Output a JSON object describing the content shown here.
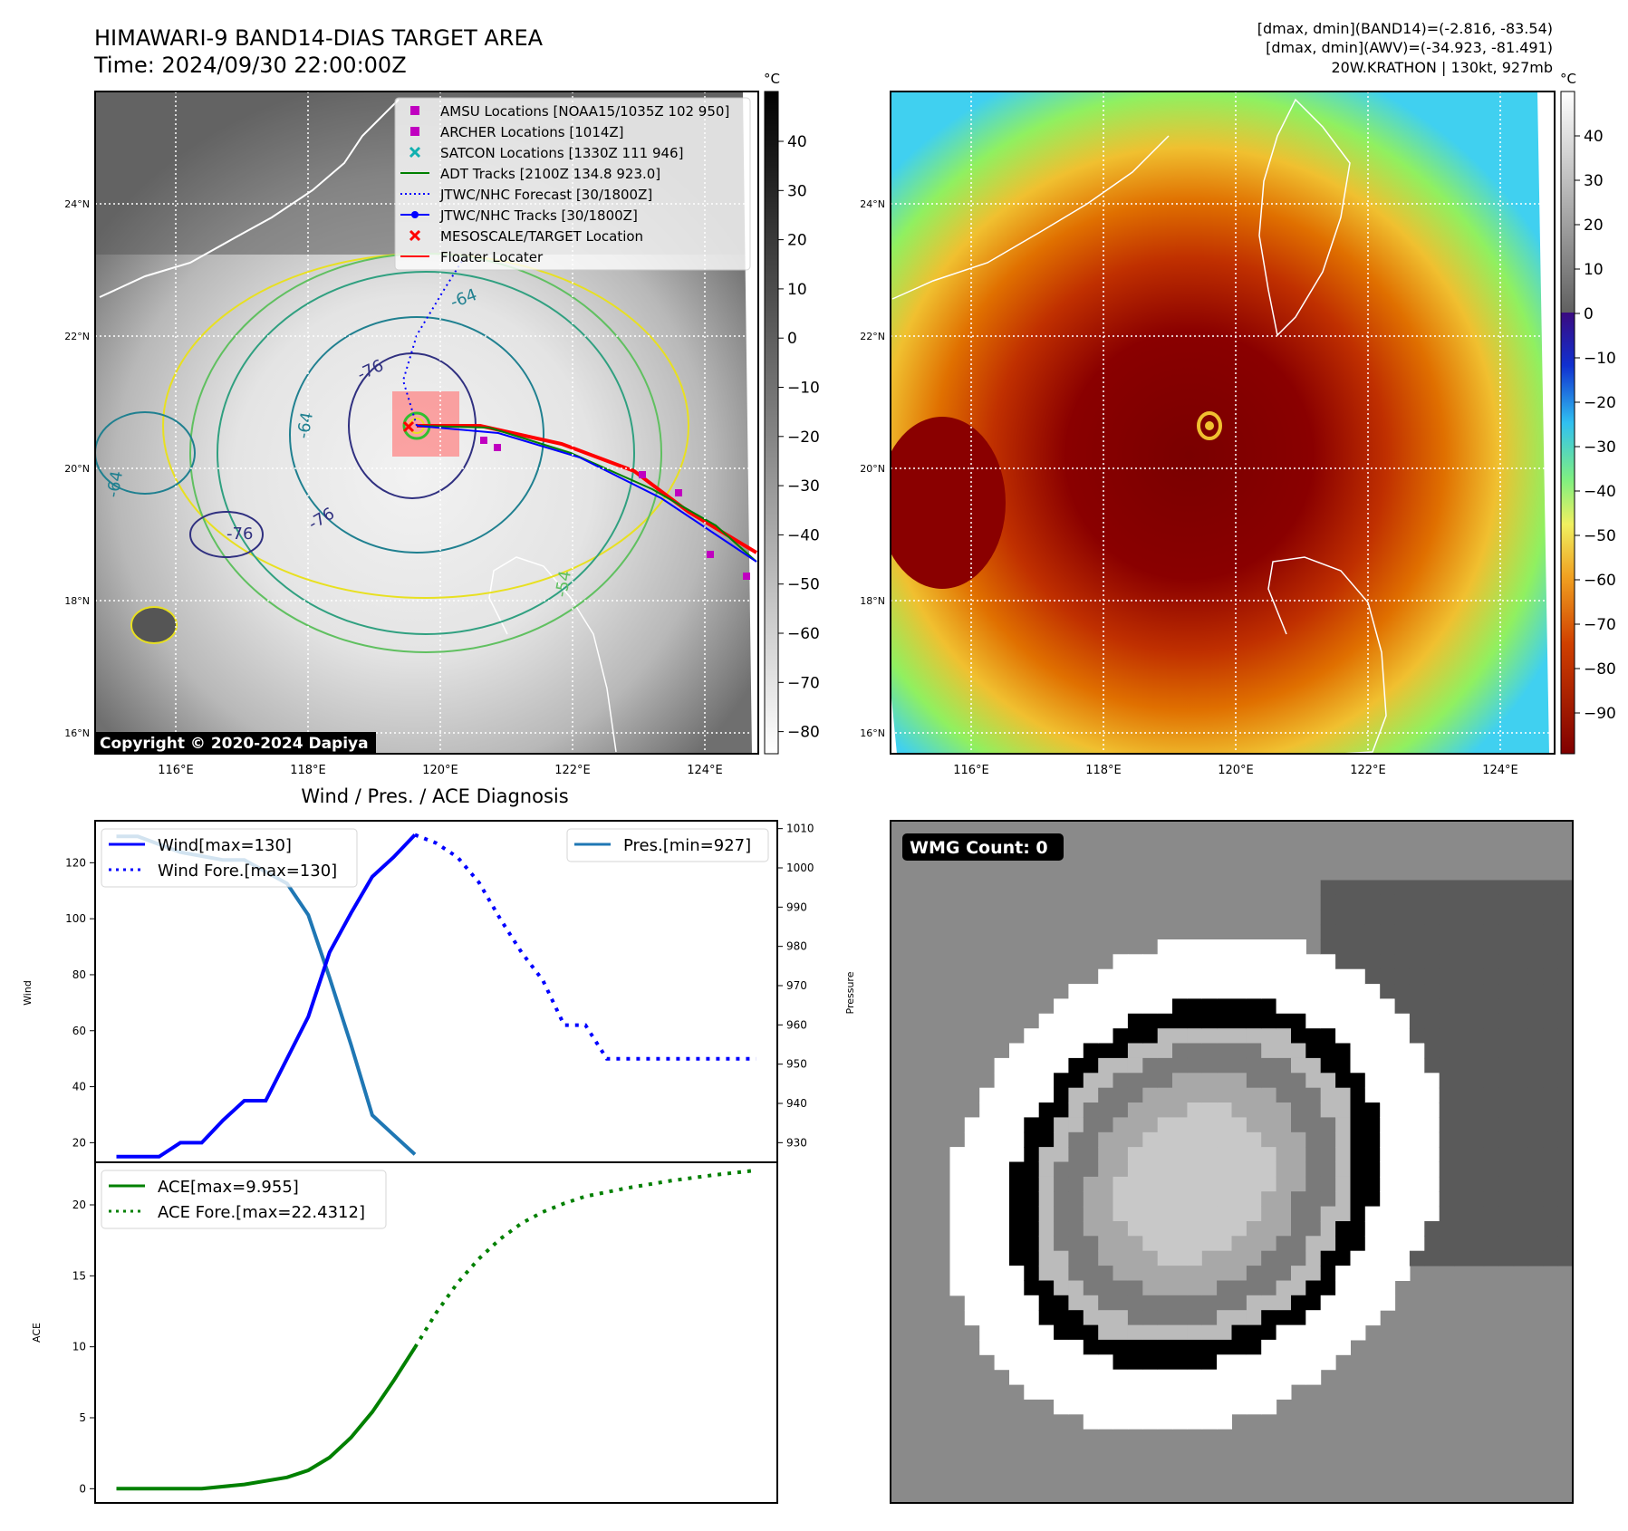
{
  "header": {
    "title_line1": "HIMAWARI-9 BAND14-DIAS TARGET AREA",
    "title_line2": "Time: 2024/09/30 22:00:00Z",
    "stats_line1": "[dmax, dmin](BAND14)=(-2.816, -83.54)",
    "stats_line2": "[dmax, dmin](AWV)=(-34.923, -81.491)",
    "stats_line3": "20W.KRATHON | 130kt, 927mb"
  },
  "maps": {
    "lon_ticks": [
      "116°E",
      "118°E",
      "120°E",
      "122°E",
      "124°E"
    ],
    "lat_ticks": [
      "24°N",
      "22°N",
      "20°N",
      "18°N",
      "16°N"
    ],
    "copyright": "Copyright © 2020-2024 Dapiya",
    "contour_labels": [
      "-76",
      "-64",
      "-64",
      "-76",
      "-76",
      "-64",
      "-54"
    ],
    "ir_colorbar": {
      "unit": "°C",
      "ticks": [
        "40",
        "30",
        "20",
        "10",
        "0",
        "−10",
        "−20",
        "−30",
        "−40",
        "−50",
        "−60",
        "−70",
        "−80"
      ]
    },
    "wv_colorbar": {
      "unit": "°C",
      "ticks": [
        "40",
        "30",
        "20",
        "10",
        "0",
        "−10",
        "−20",
        "−30",
        "−40",
        "−50",
        "−60",
        "−70",
        "−80",
        "−90"
      ]
    },
    "legend": [
      {
        "label": "AMSU Locations [NOAA15/1035Z 102 950]",
        "marker": "square",
        "color": "#c000c0"
      },
      {
        "label": "ARCHER Locations [1014Z]",
        "marker": "square",
        "color": "#c000c0"
      },
      {
        "label": "SATCON Locations [1330Z 111 946]",
        "marker": "x",
        "color": "#10b0b0"
      },
      {
        "label": "ADT Tracks [2100Z 134.8 923.0]",
        "marker": "line",
        "color": "#008000"
      },
      {
        "label": "JTWC/NHC Forecast [30/1800Z]",
        "marker": "dotted",
        "color": "#0000ff"
      },
      {
        "label": "JTWC/NHC Tracks [30/1800Z]",
        "marker": "line-dot",
        "color": "#0000ff"
      },
      {
        "label": "MESOSCALE/TARGET Location",
        "marker": "x",
        "color": "#ff0000"
      },
      {
        "label": "Floater Locater",
        "marker": "line",
        "color": "#ff0000"
      }
    ]
  },
  "diagnosis": {
    "title": "Wind / Pres. / ACE Diagnosis",
    "wind_ylabel": "Wind",
    "pres_ylabel": "Pressure",
    "ace_ylabel": "ACE",
    "legend_wind": "Wind[max=130]",
    "legend_wind_fore": "Wind Fore.[max=130]",
    "legend_pres": "Pres.[min=927]",
    "legend_ace": "ACE[max=9.955]",
    "legend_ace_fore": "ACE Fore.[max=22.4312]",
    "wmg_label": "WMG Count: 0"
  },
  "chart_data": [
    {
      "type": "line",
      "title": "Wind / Pres. / ACE Diagnosis",
      "ylabel": "Wind",
      "ylim": [
        13,
        135
      ],
      "yticks": [
        20,
        40,
        60,
        80,
        100,
        120
      ],
      "series": [
        {
          "name": "Wind[max=130]",
          "color": "#0000ff",
          "style": "solid",
          "x": [
            0,
            1,
            2,
            3,
            4,
            5,
            6,
            7,
            8,
            9,
            10,
            11,
            12,
            13,
            14
          ],
          "y": [
            15,
            15,
            15,
            20,
            20,
            28,
            35,
            35,
            50,
            65,
            88,
            102,
            115,
            122,
            130
          ]
        },
        {
          "name": "Wind Fore.[max=130]",
          "color": "#0000ff",
          "style": "dotted",
          "x": [
            14,
            15,
            16,
            17,
            18,
            19,
            20,
            21,
            22,
            23,
            24,
            25,
            26,
            27,
            28,
            29,
            30
          ],
          "y": [
            130,
            127,
            122,
            113,
            100,
            88,
            78,
            62,
            62,
            50,
            50,
            50,
            50,
            50,
            50,
            50,
            50
          ]
        }
      ]
    },
    {
      "type": "line",
      "ylabel": "Pressure",
      "ylim": [
        925,
        1012
      ],
      "yticks": [
        930,
        940,
        950,
        960,
        970,
        980,
        990,
        1000,
        1010
      ],
      "series": [
        {
          "name": "Pres.[min=927]",
          "color": "#1f77b4",
          "style": "solid",
          "x": [
            0,
            1,
            2,
            3,
            4,
            5,
            6,
            7,
            8,
            9,
            10,
            11,
            12,
            13,
            14
          ],
          "y": [
            1008,
            1008,
            1006,
            1004,
            1003,
            1002,
            1002,
            999,
            996,
            988,
            972,
            955,
            937,
            932,
            927
          ]
        }
      ]
    },
    {
      "type": "line",
      "ylabel": "ACE",
      "ylim": [
        -1,
        23
      ],
      "yticks": [
        0,
        5,
        10,
        15,
        20
      ],
      "series": [
        {
          "name": "ACE[max=9.955]",
          "color": "#008000",
          "style": "solid",
          "x": [
            0,
            2,
            4,
            6,
            8,
            9,
            10,
            11,
            12,
            13,
            14
          ],
          "y": [
            0,
            0,
            0,
            0.3,
            0.8,
            1.3,
            2.2,
            3.6,
            5.4,
            7.6,
            9.955
          ]
        },
        {
          "name": "ACE Fore.[max=22.4312]",
          "color": "#008000",
          "style": "dotted",
          "x": [
            14,
            15,
            16,
            17,
            18,
            19,
            20,
            21,
            22,
            24,
            26,
            28,
            30
          ],
          "y": [
            9.955,
            12.4,
            14.5,
            16.2,
            17.6,
            18.7,
            19.5,
            20.1,
            20.6,
            21.2,
            21.7,
            22.1,
            22.4312
          ]
        }
      ]
    }
  ]
}
